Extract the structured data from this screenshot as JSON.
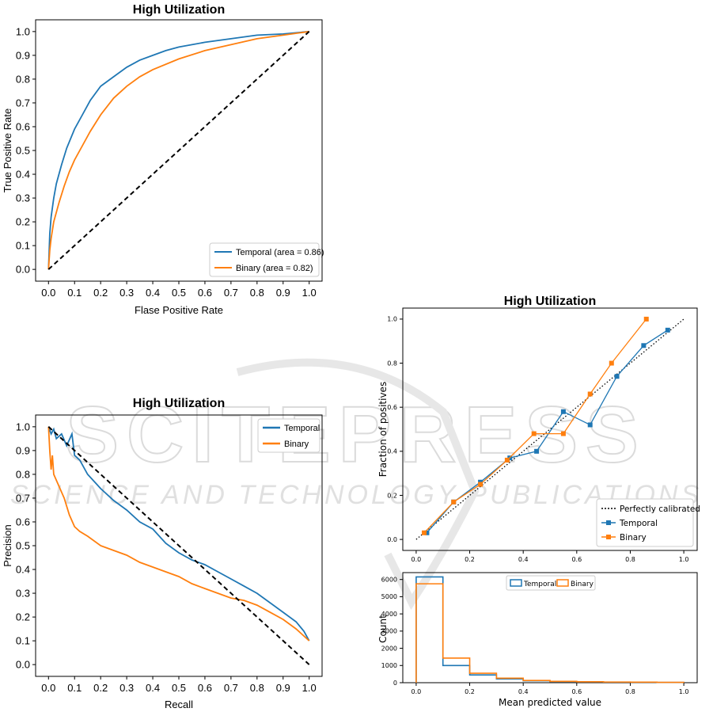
{
  "watermark": {
    "main": "SCITEPRESS",
    "sub": "SCIENCE AND TECHNOLOGY PUBLICATIONS",
    "color": "#dcdcdc"
  },
  "colors": {
    "temporal": "#1f77b4",
    "binary": "#ff7f0e",
    "diagonal": "#000000"
  },
  "chart_data": [
    {
      "id": "roc",
      "type": "line",
      "title": "High Utilization",
      "xlabel": "Flase Positive Rate",
      "ylabel": "True Positive Rate",
      "xlim": [
        0,
        1
      ],
      "ylim": [
        0,
        1
      ],
      "xticks": [
        "0.0",
        "0.1",
        "0.2",
        "0.3",
        "0.4",
        "0.5",
        "0.6",
        "0.7",
        "0.8",
        "0.9",
        "1.0"
      ],
      "yticks": [
        "0.0",
        "0.1",
        "0.2",
        "0.3",
        "0.4",
        "0.5",
        "0.6",
        "0.7",
        "0.8",
        "0.9",
        "1.0"
      ],
      "legend": "lower-right",
      "series": [
        {
          "name": "Temporal (area = 0.86)",
          "color_key": "temporal",
          "x": [
            0,
            0.005,
            0.01,
            0.02,
            0.03,
            0.05,
            0.07,
            0.1,
            0.13,
            0.16,
            0.2,
            0.25,
            0.3,
            0.35,
            0.4,
            0.45,
            0.5,
            0.6,
            0.7,
            0.8,
            0.9,
            1.0
          ],
          "y": [
            0,
            0.15,
            0.22,
            0.3,
            0.36,
            0.44,
            0.51,
            0.59,
            0.65,
            0.71,
            0.77,
            0.81,
            0.85,
            0.88,
            0.9,
            0.92,
            0.935,
            0.955,
            0.97,
            0.985,
            0.99,
            1.0
          ]
        },
        {
          "name": "Binary (area = 0.82)",
          "color_key": "binary",
          "x": [
            0,
            0.005,
            0.01,
            0.02,
            0.04,
            0.06,
            0.08,
            0.1,
            0.13,
            0.16,
            0.2,
            0.25,
            0.3,
            0.35,
            0.4,
            0.5,
            0.6,
            0.7,
            0.8,
            0.9,
            1.0
          ],
          "y": [
            0,
            0.08,
            0.13,
            0.2,
            0.28,
            0.35,
            0.41,
            0.46,
            0.52,
            0.58,
            0.65,
            0.72,
            0.77,
            0.81,
            0.84,
            0.885,
            0.92,
            0.945,
            0.97,
            0.985,
            1.0
          ]
        },
        {
          "name": "chance",
          "color_key": "diagonal",
          "dashed": true,
          "legend": false,
          "x": [
            0,
            1
          ],
          "y": [
            0,
            1
          ]
        }
      ]
    },
    {
      "id": "pr",
      "type": "line",
      "title": "High Utilization",
      "xlabel": "Recall",
      "ylabel": "Precision",
      "xlim": [
        0,
        1
      ],
      "ylim": [
        0,
        1
      ],
      "xticks": [
        "0.0",
        "0.1",
        "0.2",
        "0.3",
        "0.4",
        "0.5",
        "0.6",
        "0.7",
        "0.8",
        "0.9",
        "1.0"
      ],
      "yticks": [
        "0.0",
        "0.1",
        "0.2",
        "0.3",
        "0.4",
        "0.5",
        "0.6",
        "0.7",
        "0.8",
        "0.9",
        "1.0"
      ],
      "legend": "top-right",
      "series": [
        {
          "name": "Temporal",
          "color_key": "temporal",
          "x": [
            0,
            0.01,
            0.02,
            0.03,
            0.05,
            0.07,
            0.09,
            0.1,
            0.12,
            0.15,
            0.2,
            0.25,
            0.3,
            0.35,
            0.4,
            0.45,
            0.5,
            0.55,
            0.6,
            0.65,
            0.7,
            0.75,
            0.8,
            0.85,
            0.9,
            0.95,
            0.98,
            1.0
          ],
          "y": [
            1.0,
            0.97,
            0.99,
            0.95,
            0.97,
            0.92,
            0.97,
            0.88,
            0.86,
            0.8,
            0.74,
            0.69,
            0.65,
            0.6,
            0.57,
            0.51,
            0.47,
            0.44,
            0.42,
            0.39,
            0.36,
            0.33,
            0.3,
            0.26,
            0.22,
            0.18,
            0.14,
            0.1
          ]
        },
        {
          "name": "Binary",
          "color_key": "binary",
          "x": [
            0,
            0.005,
            0.01,
            0.015,
            0.02,
            0.04,
            0.06,
            0.08,
            0.1,
            0.12,
            0.15,
            0.2,
            0.25,
            0.3,
            0.35,
            0.4,
            0.45,
            0.5,
            0.55,
            0.6,
            0.65,
            0.7,
            0.75,
            0.8,
            0.85,
            0.9,
            0.95,
            1.0
          ],
          "y": [
            1.0,
            0.9,
            0.82,
            0.88,
            0.8,
            0.75,
            0.7,
            0.63,
            0.58,
            0.56,
            0.54,
            0.5,
            0.48,
            0.46,
            0.43,
            0.41,
            0.39,
            0.37,
            0.34,
            0.32,
            0.3,
            0.28,
            0.27,
            0.25,
            0.22,
            0.19,
            0.15,
            0.1
          ]
        },
        {
          "name": "reference",
          "color_key": "diagonal",
          "dashed": true,
          "legend": false,
          "x": [
            0,
            1
          ],
          "y": [
            1,
            0
          ]
        }
      ]
    },
    {
      "id": "calibration",
      "type": "line",
      "title": "High Utilization",
      "xlabel": "",
      "ylabel": "Fraction of positives",
      "xlim": [
        -0.05,
        1.05
      ],
      "ylim": [
        -0.05,
        1.05
      ],
      "xticks": [
        "0.0",
        "0.2",
        "0.4",
        "0.6",
        "0.8",
        "1.0"
      ],
      "yticks": [
        "0.0",
        "0.2",
        "0.4",
        "0.6",
        "0.8",
        "1.0"
      ],
      "legend": "lower-right",
      "series": [
        {
          "name": "Perfectly calibrated",
          "color_key": "diagonal",
          "dotted": true,
          "x": [
            0,
            1
          ],
          "y": [
            0,
            1
          ]
        },
        {
          "name": "Temporal",
          "color_key": "temporal",
          "marker": "square",
          "x": [
            0.04,
            0.14,
            0.24,
            0.35,
            0.45,
            0.55,
            0.65,
            0.75,
            0.85,
            0.94
          ],
          "y": [
            0.03,
            0.17,
            0.26,
            0.37,
            0.4,
            0.58,
            0.52,
            0.74,
            0.88,
            0.95
          ]
        },
        {
          "name": "Binary",
          "color_key": "binary",
          "marker": "square",
          "x": [
            0.03,
            0.14,
            0.24,
            0.34,
            0.44,
            0.55,
            0.65,
            0.73,
            0.86
          ],
          "y": [
            0.03,
            0.17,
            0.25,
            0.36,
            0.48,
            0.48,
            0.66,
            0.8,
            1.0
          ]
        }
      ]
    },
    {
      "id": "histogram",
      "type": "bar",
      "title": "",
      "xlabel": "Mean predicted value",
      "ylabel": "Count",
      "xlim": [
        -0.05,
        1.05
      ],
      "ylim": [
        0,
        6400
      ],
      "xticks": [
        "0.0",
        "0.2",
        "0.4",
        "0.6",
        "0.8",
        "1.0"
      ],
      "yticks": [
        "0",
        "1000",
        "2000",
        "3000",
        "4000",
        "5000",
        "6000"
      ],
      "legend": "top-center",
      "bin_edges": [
        0,
        0.1,
        0.2,
        0.3,
        0.4,
        0.5,
        0.6,
        0.7,
        0.8,
        0.9,
        1.0
      ],
      "series": [
        {
          "name": "Temporal",
          "color_key": "temporal",
          "values": [
            6150,
            1000,
            450,
            220,
            110,
            70,
            50,
            35,
            25,
            15
          ]
        },
        {
          "name": "Binary",
          "color_key": "binary",
          "values": [
            5750,
            1430,
            550,
            260,
            130,
            80,
            55,
            40,
            30,
            20
          ]
        }
      ]
    }
  ]
}
